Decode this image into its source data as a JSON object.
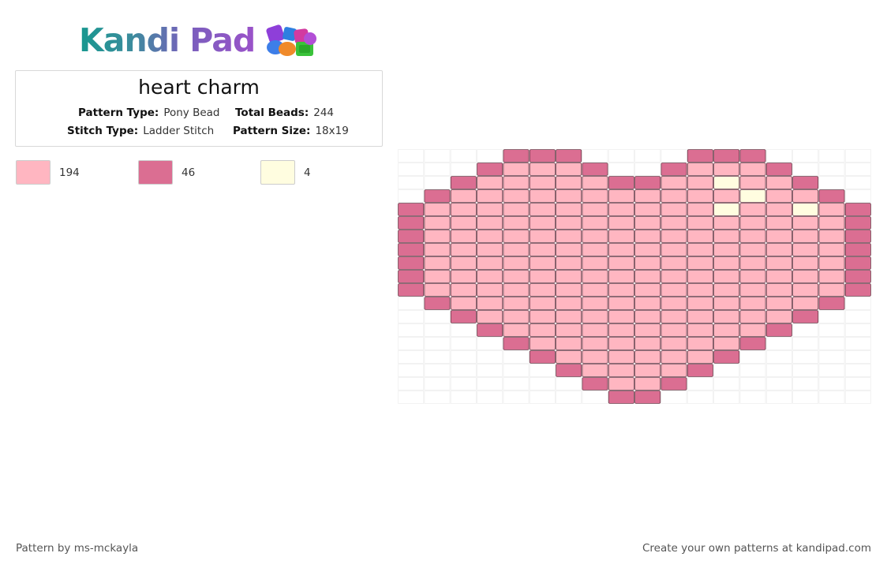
{
  "brand": {
    "name": "Kandi Pad"
  },
  "pattern": {
    "title": "heart charm",
    "pattern_type_label": "Pattern Type:",
    "pattern_type": "Pony Bead",
    "total_beads_label": "Total Beads:",
    "total_beads": "244",
    "stitch_type_label": "Stitch Type:",
    "stitch_type": "Ladder Stitch",
    "pattern_size_label": "Pattern Size:",
    "pattern_size": "18x19"
  },
  "palette": [
    {
      "color": "#ffb6c1",
      "count": "194"
    },
    {
      "color": "#db6e92",
      "count": "46"
    },
    {
      "color": "#fffde0",
      "count": "4"
    }
  ],
  "grid": {
    "columns": 18,
    "rows": 19,
    "legend": {
      ".": "empty",
      "A": "#ffb6c1",
      "B": "#db6e92",
      "C": "#fffde0"
    },
    "cells": [
      "....BBB....BBB....",
      "...BAAAB..BAAAB...",
      "..BAAAAABBAACAAB..",
      ".BAAAAAAAAAAACAAB.",
      "BAAAAAAAAAAACAACAB",
      "BAAAAAAAAAAAAAAAAB",
      "BAAAAAAAAAAAAAAAAB",
      "BAAAAAAAAAAAAAAAAB",
      "BAAAAAAAAAAAAAAAAB",
      "BAAAAAAAAAAAAAAAAB",
      "BAAAAAAAAAAAAAAAAB",
      ".BAAAAAAAAAAAAAAB.",
      "..BAAAAAAAAAAAAB..",
      "...BAAAAAAAAAAB...",
      "....BAAAAAAAAB....",
      ".....BAAAAAAB.....",
      "......BAAAAB......",
      ".......BAAB.......",
      "........BB........"
    ]
  },
  "footer": {
    "credit": "Pattern by ms-mckayla",
    "cta": "Create your own patterns at kandipad.com"
  }
}
